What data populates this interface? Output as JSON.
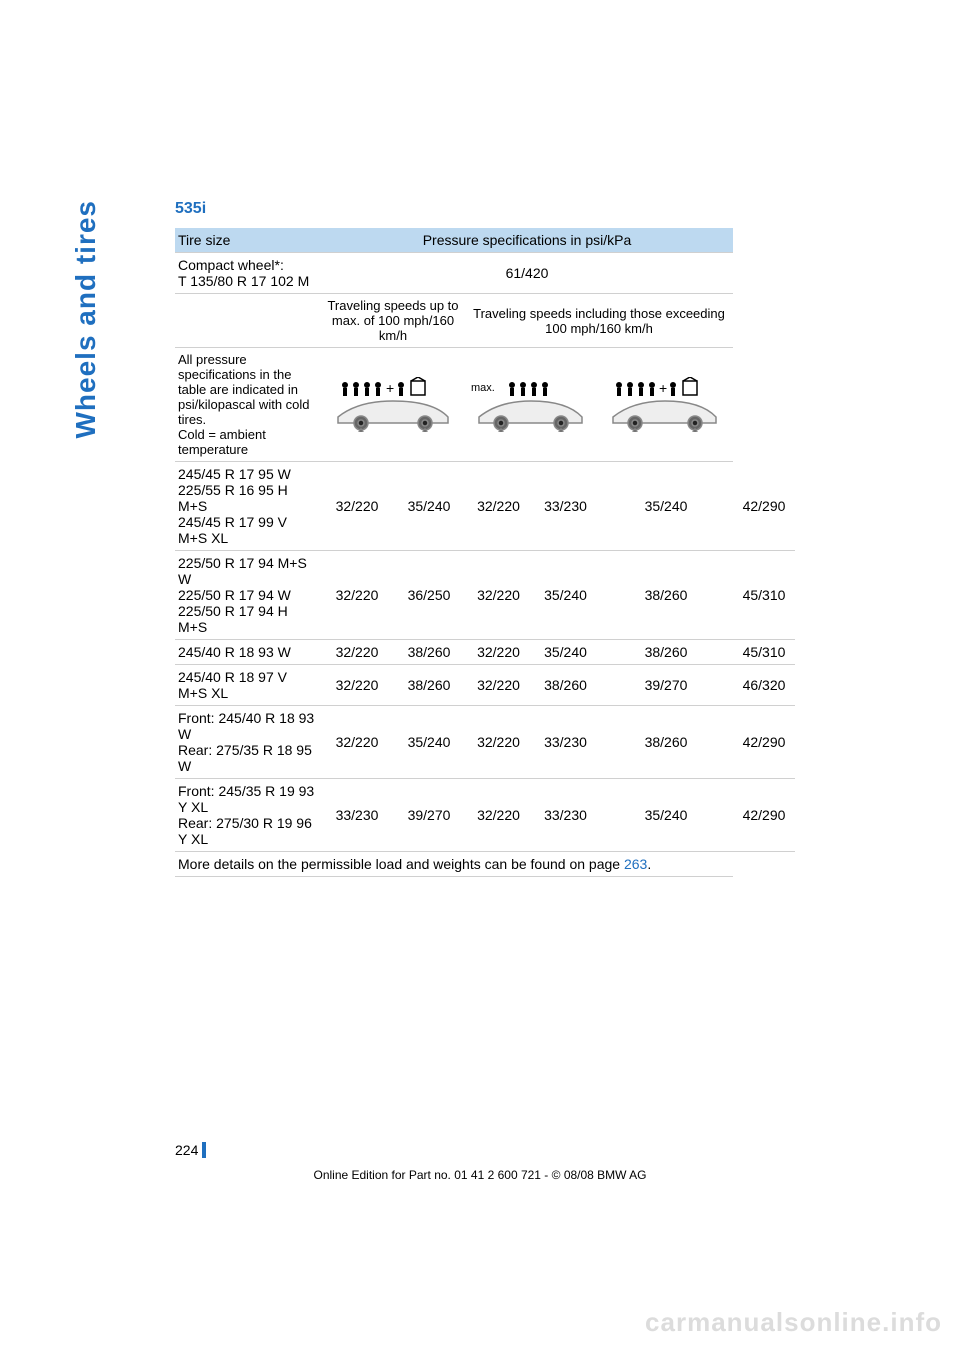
{
  "colors": {
    "bmw_blue": "#1f6fbf",
    "header_bg": "#bdd9f0",
    "row_border": "#d0d0d0",
    "watermark": "#dcdcdc",
    "text": "#000000",
    "page_bar": "#1f6fbf"
  },
  "side_label": "Wheels and tires",
  "model": "535i",
  "table": {
    "header": {
      "tire_size": "Tire size",
      "pressure_spec": "Pressure specifications in psi/kPa"
    },
    "compact_wheel": {
      "label": "Compact wheel*:\nT 135/80 R 17 102 M",
      "value": "61/420"
    },
    "speed_headers": {
      "low": "Traveling speeds up to max. of 100 mph/160 km/h",
      "high": "Traveling speeds including those exceeding 100 mph/160 km/h"
    },
    "note_row": "All pressure specifications in the table are indicated in psi/kilopascal with cold tires.\nCold = ambient temperature",
    "rows": [
      {
        "size": "245/45 R 17 95 W\n225/55 R 16 95 H M+S\n245/45 R 17 99 V M+S XL",
        "v": [
          "32/220",
          "35/240",
          "32/220",
          "33/230",
          "35/240",
          "42/290"
        ]
      },
      {
        "size": "225/50 R 17 94 M+S W\n225/50 R 17 94 W\n225/50 R 17 94 H M+S",
        "v": [
          "32/220",
          "36/250",
          "32/220",
          "35/240",
          "38/260",
          "45/310"
        ]
      },
      {
        "size": "245/40 R 18 93 W",
        "v": [
          "32/220",
          "38/260",
          "32/220",
          "35/240",
          "38/260",
          "45/310"
        ]
      },
      {
        "size": "245/40 R 18 97 V M+S XL",
        "v": [
          "32/220",
          "38/260",
          "32/220",
          "38/260",
          "39/270",
          "46/320"
        ]
      },
      {
        "size": "Front: 245/40 R 18 93 W\nRear: 275/35 R 18 95 W",
        "v": [
          "32/220",
          "35/240",
          "32/220",
          "33/230",
          "38/260",
          "42/290"
        ]
      },
      {
        "size": "Front: 245/35 R 19 93 Y XL\nRear: 275/30 R 19 96 Y XL",
        "v": [
          "33/230",
          "39/270",
          "32/220",
          "33/230",
          "35/240",
          "42/290"
        ]
      }
    ],
    "footnote_prefix": "More details on the permissible load and weights can be found on page ",
    "footnote_pagelink": "263",
    "footnote_suffix": "."
  },
  "page_number": "224",
  "copyright": "Online Edition for Part no. 01 41 2 600 721 - © 08/08 BMW AG",
  "watermark": "carmanualsonline.info"
}
